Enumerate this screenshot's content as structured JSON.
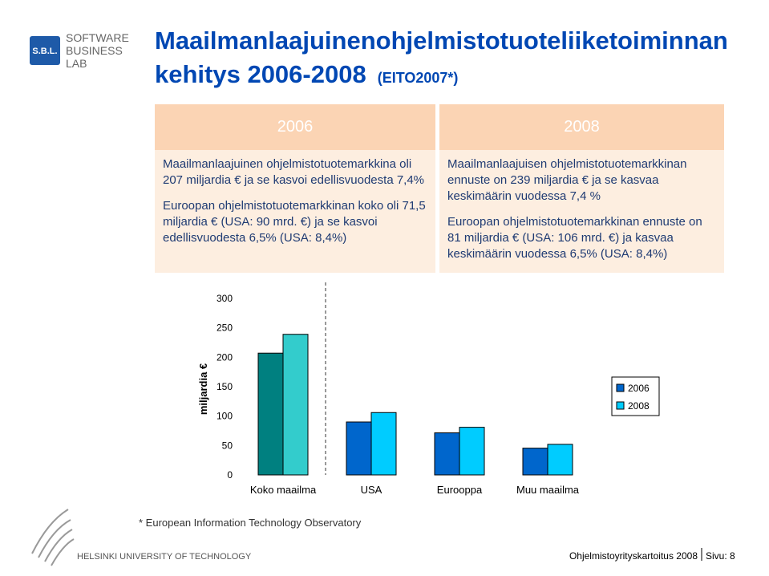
{
  "logo": {
    "initials": "S.B.L.",
    "name_lines": [
      "SOFTWARE",
      "BUSINESS",
      "LAB"
    ]
  },
  "header": {
    "title_lines": [
      "Maailmanlaajuinenohjelmistotuoteliiketoiminnan",
      "kehitys 2006-2008"
    ],
    "source_tag": "(EITO2007*)"
  },
  "table": {
    "columns": [
      "2006",
      "2008"
    ],
    "cells": [
      [
        "Maailmanlaajuinen ohjelmistotuotemarkkina oli 207 miljardia € ja se kasvoi edellisvuodesta 7,4%",
        "Maailmanlaajuisen ohjelmistotuotemarkkinan ennuste on 239 miljardia € ja se kasvaa keskimäärin vuodessa 7,4 %"
      ],
      [
        "Euroopan ohjelmistotuotemarkkinan koko oli 71,5 miljardia € (USA: 90 mrd. €) ja se kasvoi edellisvuodesta 6,5% (USA: 8,4%)",
        "Euroopan ohjelmistotuotemarkkinan ennuste on 81 miljardia € (USA: 106 mrd. €) ja kasvaa keskimäärin vuodessa 6,5% (USA: 8,4%)"
      ]
    ]
  },
  "chart_data": {
    "type": "bar",
    "y_label": "miljardia €",
    "categories": [
      "Koko maailma",
      "USA",
      "Eurooppa",
      "Muu maailma"
    ],
    "series": [
      {
        "name": "2006",
        "color": "#0066cc",
        "colors": [
          "#008080",
          "#0066cc",
          "#0066cc",
          "#0066cc"
        ],
        "values": [
          207,
          90,
          71.5,
          45.5
        ]
      },
      {
        "name": "2008",
        "color": "#00ccff",
        "colors": [
          "#33cccc",
          "#00ccff",
          "#00ccff",
          "#00ccff"
        ],
        "values": [
          239,
          106,
          81,
          52
        ]
      }
    ],
    "ylim": [
      0,
      300
    ],
    "yticks": [
      0,
      50,
      100,
      150,
      200,
      250,
      300
    ],
    "legend": "right"
  },
  "footnote": "* European Information Technology Observatory",
  "footer": {
    "university": "HELSINKI UNIVERSITY OF TECHNOLOGY",
    "report": "Ohjelmistoyrityskartoitus 2008",
    "page": "Sivu: 8"
  }
}
